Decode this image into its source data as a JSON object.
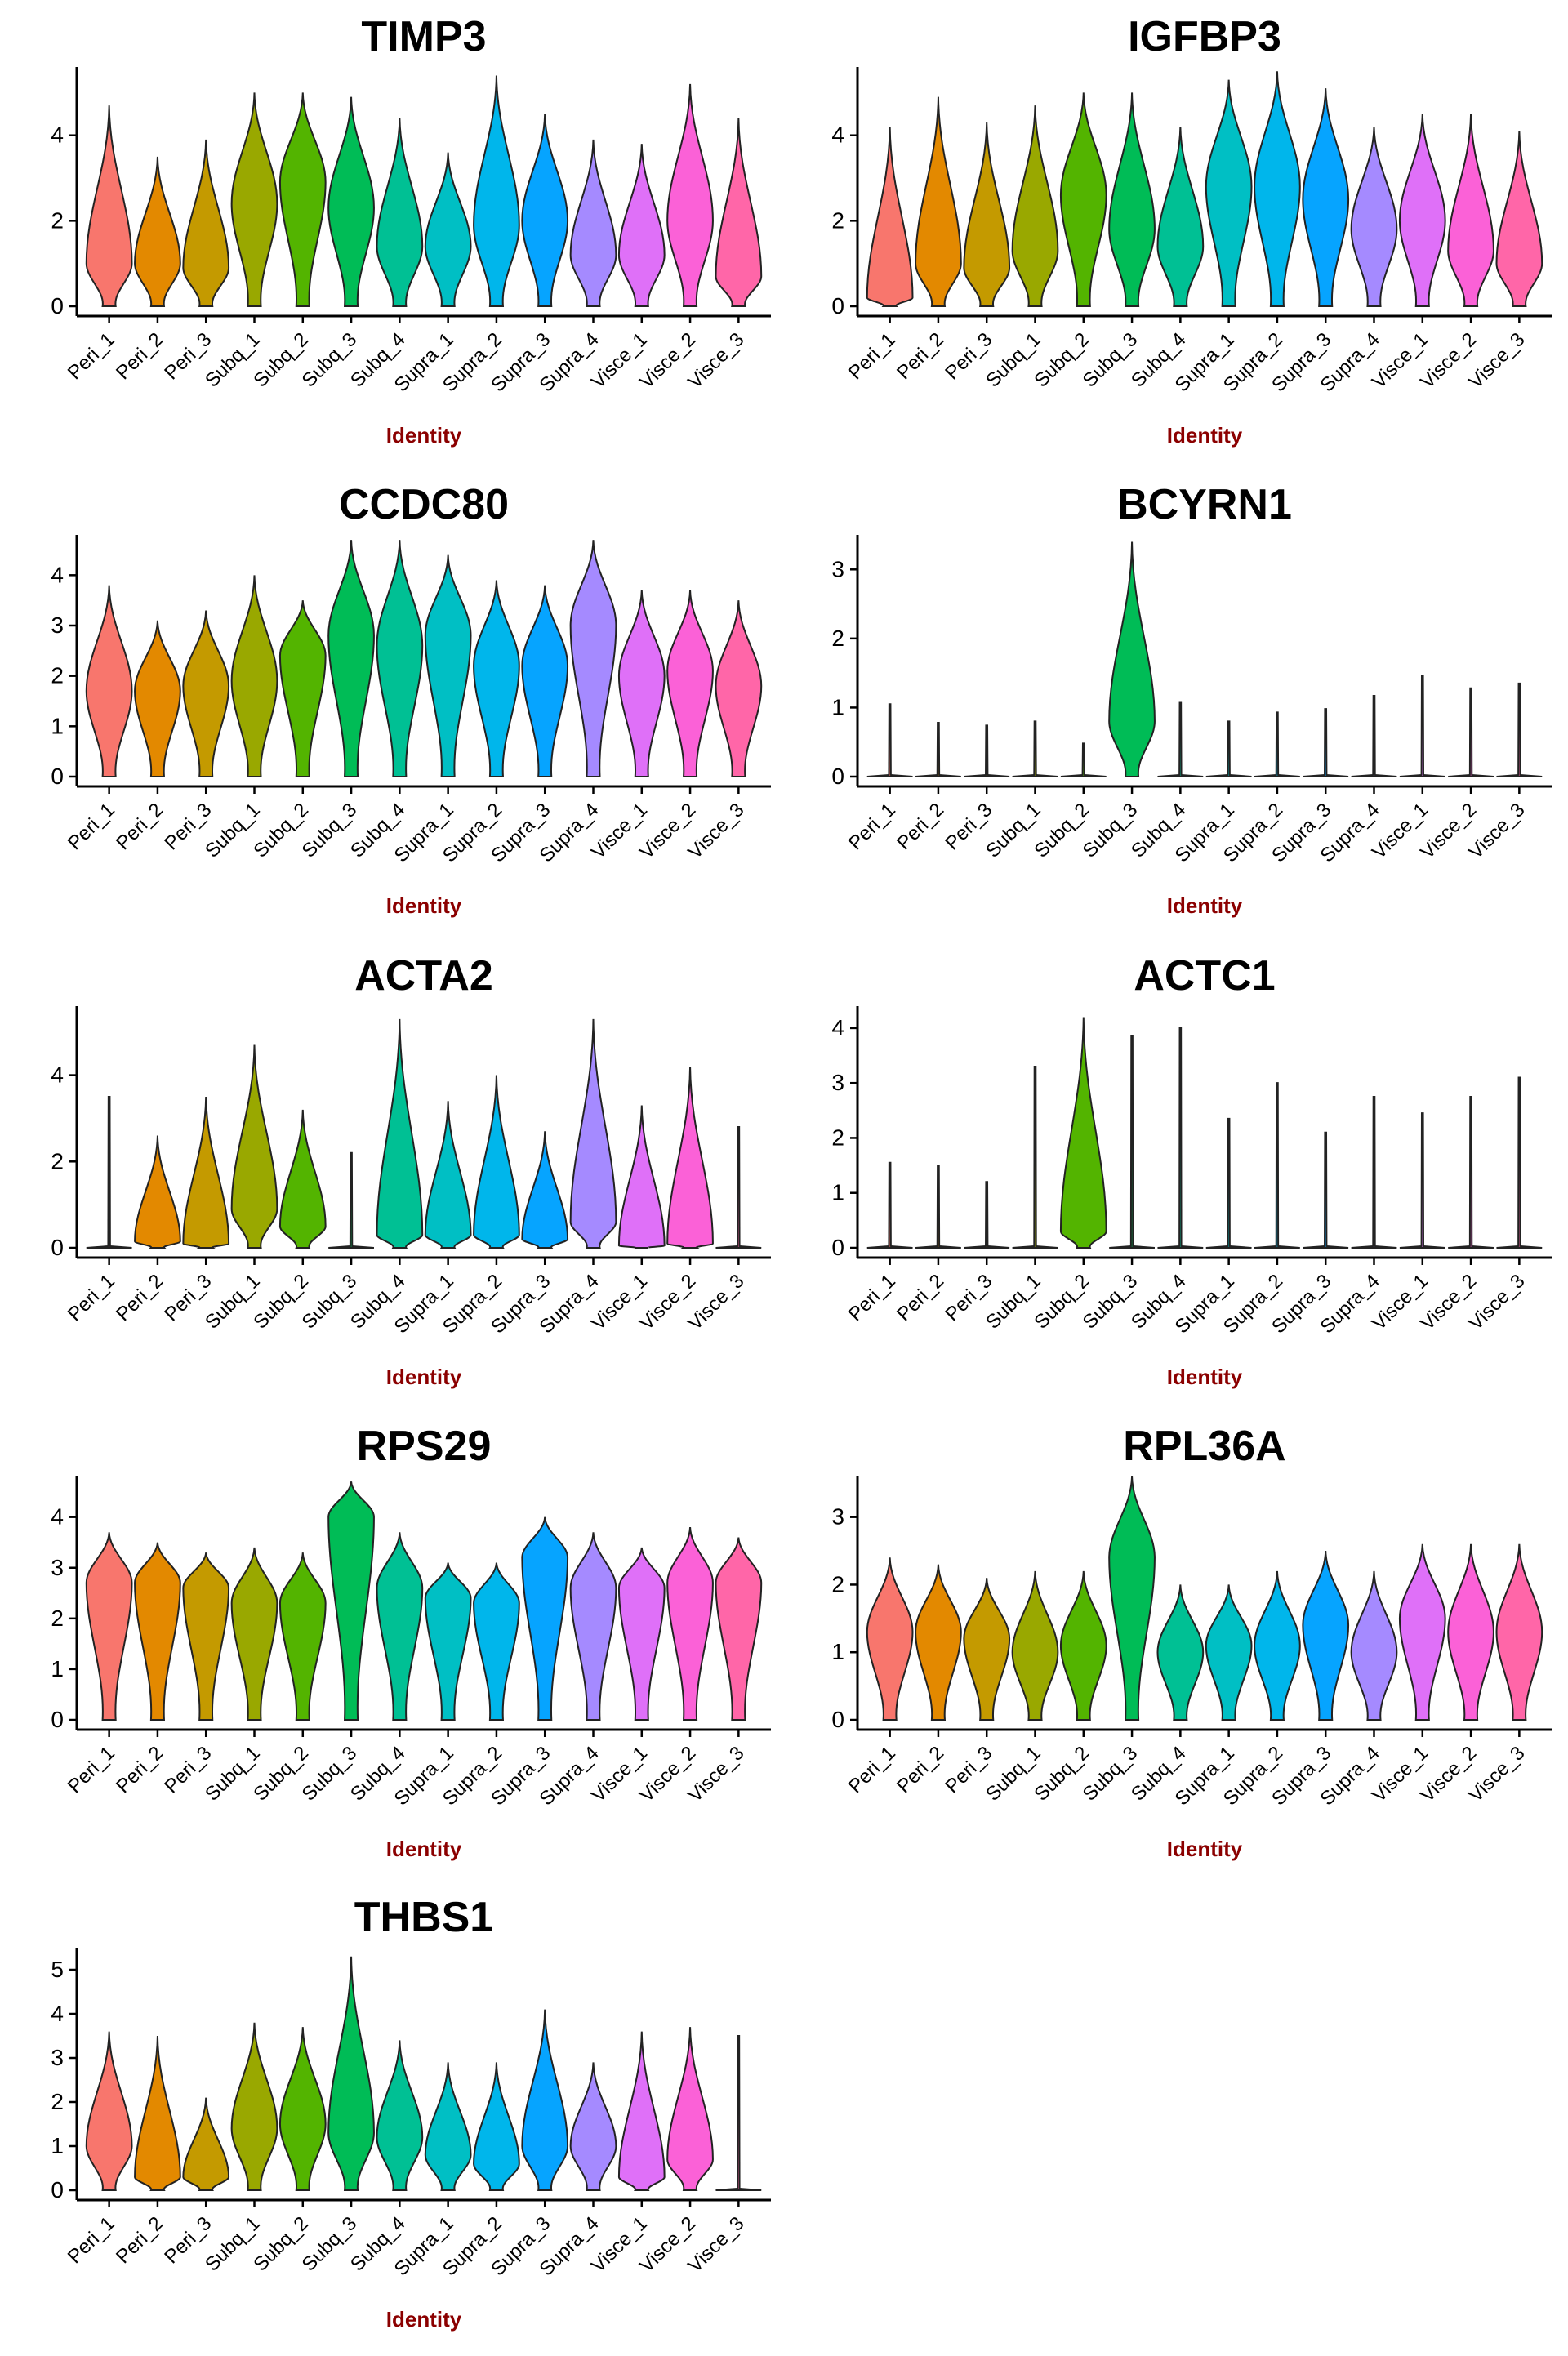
{
  "figure": {
    "xlabel": "Identity",
    "xlabel_color": "#8B0000",
    "categories": [
      "Peri_1",
      "Peri_2",
      "Peri_3",
      "Subq_1",
      "Subq_2",
      "Subq_3",
      "Subq_4",
      "Supra_1",
      "Supra_2",
      "Supra_3",
      "Supra_4",
      "Visce_1",
      "Visce_2",
      "Visce_3"
    ],
    "colors": [
      "#F8766D",
      "#E38900",
      "#C49A00",
      "#99A800",
      "#53B400",
      "#00BC56",
      "#00C094",
      "#00BFC4",
      "#00B6EB",
      "#06A4FF",
      "#A58AFF",
      "#DF70F8",
      "#FB61D7",
      "#FF66A8"
    ]
  },
  "chart_data": [
    {
      "type": "violin",
      "title": "TIMP3",
      "xlabel": "Identity",
      "ylim": [
        0,
        5.6
      ],
      "yticks": [
        0,
        2,
        4
      ],
      "medians": [
        1.0,
        1.0,
        0.9,
        2.4,
        2.9,
        2.3,
        1.4,
        1.4,
        1.9,
        2.0,
        1.2,
        1.2,
        2.0,
        0.7
      ],
      "maxima": [
        4.7,
        3.5,
        3.9,
        5.0,
        5.0,
        4.9,
        4.4,
        3.6,
        5.4,
        4.5,
        3.9,
        3.8,
        5.2,
        4.4
      ]
    },
    {
      "type": "violin",
      "title": "IGFBP3",
      "xlabel": "Identity",
      "ylim": [
        0,
        5.6
      ],
      "yticks": [
        0,
        2,
        4
      ],
      "medians": [
        0.2,
        1.0,
        0.9,
        1.3,
        2.6,
        1.8,
        1.4,
        2.8,
        2.8,
        2.5,
        1.8,
        2.0,
        1.3,
        1.0
      ],
      "maxima": [
        4.2,
        4.9,
        4.3,
        4.7,
        5.0,
        5.0,
        4.2,
        5.3,
        5.5,
        5.1,
        4.2,
        4.5,
        4.5,
        4.1
      ]
    },
    {
      "type": "violin",
      "title": "CCDC80",
      "xlabel": "Identity",
      "ylim": [
        0,
        4.8
      ],
      "yticks": [
        0,
        1,
        2,
        3,
        4
      ],
      "medians": [
        1.7,
        1.7,
        1.8,
        1.9,
        2.4,
        2.8,
        2.6,
        2.8,
        2.2,
        2.2,
        3.0,
        2.0,
        2.1,
        1.8
      ],
      "maxima": [
        3.8,
        3.1,
        3.3,
        4.0,
        3.5,
        4.7,
        4.7,
        4.4,
        3.9,
        3.8,
        4.7,
        3.7,
        3.7,
        3.5
      ]
    },
    {
      "type": "violin",
      "title": "BCYRN1",
      "xlabel": "Identity",
      "ylim": [
        0,
        3.5
      ],
      "yticks": [
        0,
        1,
        2,
        3
      ],
      "medians": [
        0,
        0,
        0,
        0,
        0,
        0.8,
        0,
        0,
        0,
        0,
        0,
        0,
        0,
        0
      ],
      "maxima": [
        1.05,
        0.78,
        0.74,
        0.8,
        0.48,
        3.4,
        1.07,
        0.8,
        0.93,
        0.98,
        1.17,
        1.46,
        1.28,
        1.35
      ]
    },
    {
      "type": "violin",
      "title": "ACTA2",
      "xlabel": "Identity",
      "ylim": [
        0,
        5.6
      ],
      "yticks": [
        0,
        2,
        4
      ],
      "medians": [
        0,
        0.15,
        0.1,
        0.9,
        0.5,
        0,
        0.3,
        0.3,
        0.3,
        0.2,
        0.6,
        0.05,
        0.1,
        0
      ],
      "maxima": [
        3.5,
        2.6,
        3.5,
        4.7,
        3.2,
        2.2,
        5.3,
        3.4,
        4.0,
        2.7,
        5.3,
        3.3,
        4.2,
        2.8
      ]
    },
    {
      "type": "violin",
      "title": "ACTC1",
      "xlabel": "Identity",
      "ylim": [
        0,
        4.4
      ],
      "yticks": [
        0,
        1,
        2,
        3,
        4
      ],
      "medians": [
        0,
        0,
        0,
        0,
        0.3,
        0,
        0,
        0,
        0,
        0,
        0,
        0,
        0,
        0
      ],
      "maxima": [
        1.55,
        1.5,
        1.2,
        3.3,
        4.2,
        3.85,
        4.0,
        2.35,
        3.0,
        2.1,
        2.75,
        2.45,
        2.75,
        3.1
      ]
    },
    {
      "type": "violin",
      "title": "RPS29",
      "xlabel": "Identity",
      "ylim": [
        0,
        4.8
      ],
      "yticks": [
        0,
        1,
        2,
        3,
        4
      ],
      "medians": [
        2.7,
        2.7,
        2.6,
        2.3,
        2.3,
        4.0,
        2.6,
        2.4,
        2.3,
        3.2,
        2.6,
        2.6,
        2.7,
        2.7
      ],
      "maxima": [
        3.7,
        3.5,
        3.3,
        3.4,
        3.3,
        4.7,
        3.7,
        3.1,
        3.1,
        4.0,
        3.7,
        3.4,
        3.8,
        3.6
      ]
    },
    {
      "type": "violin",
      "title": "RPL36A",
      "xlabel": "Identity",
      "ylim": [
        0,
        3.6
      ],
      "yticks": [
        0,
        1,
        2,
        3
      ],
      "medians": [
        1.3,
        1.3,
        1.2,
        1.0,
        1.1,
        2.4,
        1.0,
        1.1,
        1.1,
        1.4,
        1.0,
        1.5,
        1.3,
        1.3
      ],
      "maxima": [
        2.4,
        2.3,
        2.1,
        2.2,
        2.2,
        3.6,
        2.0,
        2.0,
        2.2,
        2.5,
        2.2,
        2.6,
        2.6,
        2.6
      ]
    },
    {
      "type": "violin",
      "title": "THBS1",
      "xlabel": "Identity",
      "ylim": [
        0,
        5.5
      ],
      "yticks": [
        0,
        1,
        2,
        3,
        4,
        5
      ],
      "medians": [
        1.0,
        0.3,
        0.3,
        1.4,
        1.5,
        1.3,
        1.2,
        0.8,
        0.6,
        1.0,
        1.0,
        0.3,
        0.7,
        0
      ],
      "maxima": [
        3.6,
        3.5,
        2.1,
        3.8,
        3.7,
        5.3,
        3.4,
        2.9,
        2.9,
        4.1,
        2.9,
        3.6,
        3.7,
        3.5
      ]
    }
  ]
}
